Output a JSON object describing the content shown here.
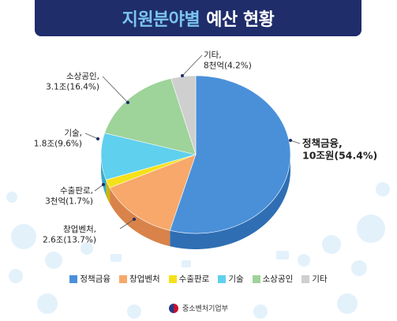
{
  "title": {
    "part1": "지원분야별",
    "part2": "예산 현황"
  },
  "chart_data": {
    "type": "pie",
    "title": "지원분야별 예산 현황",
    "slices": [
      {
        "name": "정책금융",
        "color": "#4a90d9",
        "side": "#2f6eb3",
        "percent": 54.4,
        "label_lines": [
          "정책금융,",
          "10조원(54.4%)"
        ]
      },
      {
        "name": "창업벤처",
        "color": "#f7a86a",
        "side": "#d9834a",
        "percent": 13.7,
        "label_lines": [
          "창업벤처,",
          "2.6조(13.7%)"
        ]
      },
      {
        "name": "수출판로",
        "color": "#f5e11a",
        "side": "#c9b60f",
        "percent": 1.7,
        "label_lines": [
          "수출판로,",
          "3천억(1.7%)"
        ]
      },
      {
        "name": "기술",
        "color": "#5fd0ee",
        "side": "#3aa9c9",
        "percent": 9.6,
        "label_lines": [
          "기술,",
          "1.8조(9.6%)"
        ]
      },
      {
        "name": "소상공인",
        "color": "#9ed39a",
        "side": "#76b172",
        "percent": 16.4,
        "label_lines": [
          "소상공인,",
          "3.1조(16.4%)"
        ]
      },
      {
        "name": "기타",
        "color": "#cfcfcf",
        "side": "#a8a8a8",
        "percent": 4.2,
        "label_lines": [
          "기타,",
          "8천억(4.2%)"
        ]
      }
    ]
  },
  "legend": [
    {
      "label": "정책금융",
      "color": "#4a90d9"
    },
    {
      "label": "창업벤처",
      "color": "#f7a86a"
    },
    {
      "label": "수출판로",
      "color": "#f5e11a"
    },
    {
      "label": "기술",
      "color": "#5fd0ee"
    },
    {
      "label": "소상공인",
      "color": "#9ed39a"
    },
    {
      "label": "기타",
      "color": "#cfcfcf"
    }
  ],
  "footer": {
    "ministry": "중소벤처기업부"
  }
}
